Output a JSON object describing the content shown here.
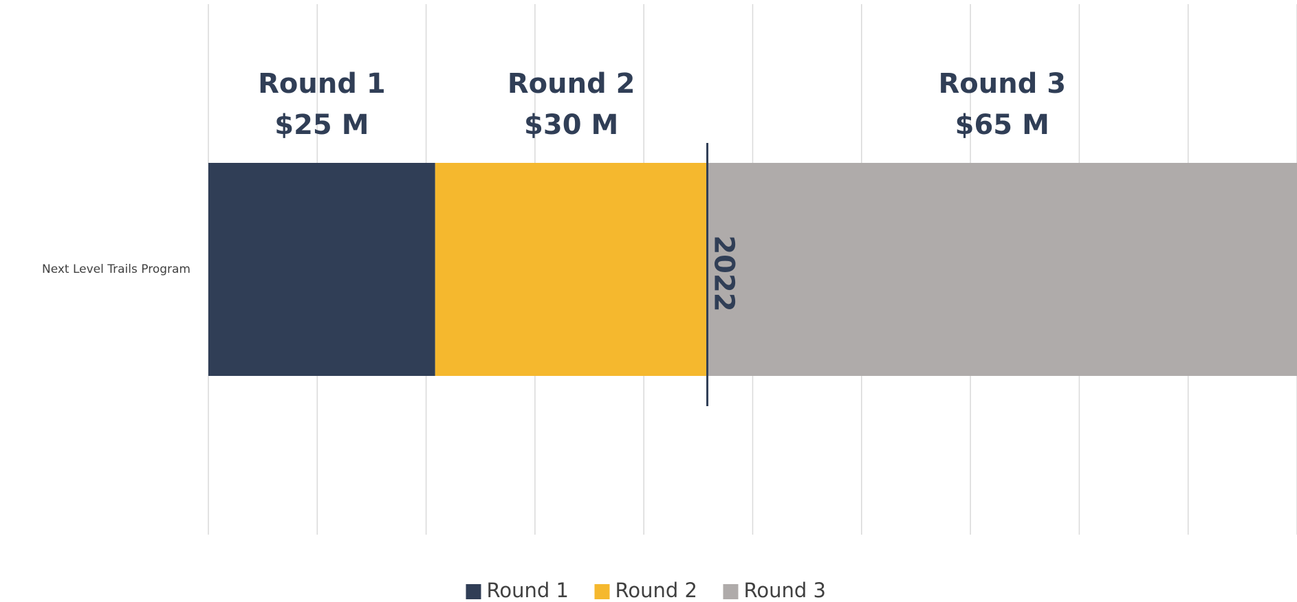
{
  "chart_data": {
    "type": "stacked_bar_horizontal",
    "categories": [
      "Next Level Trails Program"
    ],
    "series": [
      {
        "name": "Round 1",
        "color": "#303e56",
        "values": [
          25
        ],
        "value_labels": [
          "$25 M"
        ]
      },
      {
        "name": "Round 2",
        "color": "#f5b82e",
        "values": [
          30
        ],
        "value_labels": [
          "$30 M"
        ]
      },
      {
        "name": "Round 3",
        "color": "#afabaa",
        "values": [
          65
        ],
        "value_labels": [
          "$65 M"
        ]
      }
    ],
    "xlim": [
      0,
      120
    ],
    "xticks": [
      0,
      12,
      24,
      36,
      48,
      60,
      72,
      84,
      96,
      108,
      120
    ],
    "grid": true,
    "legend": "bottom",
    "annotations": [
      {
        "text": "2022",
        "x": 55,
        "color": "#303e56"
      }
    ]
  }
}
